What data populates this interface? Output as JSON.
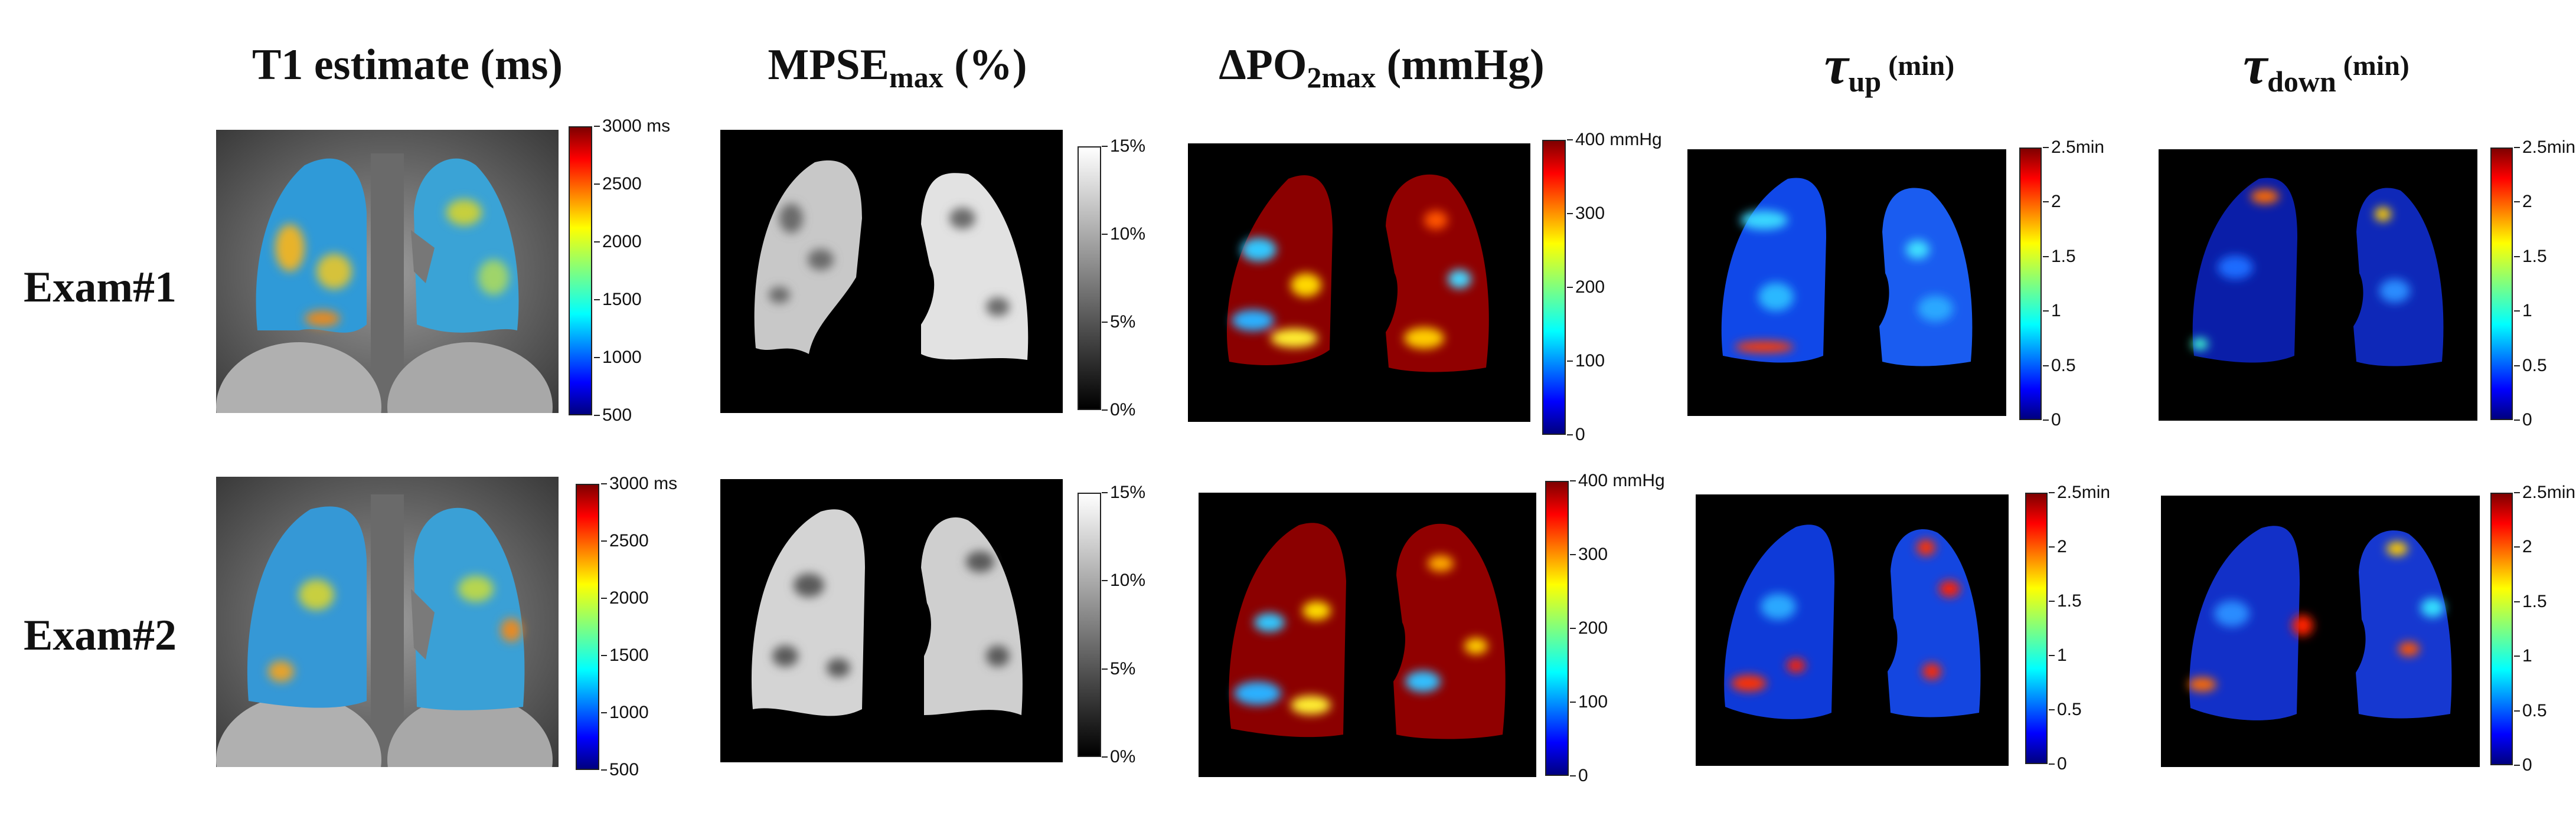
{
  "columns": {
    "t1": {
      "label": "T1 estimate (ms)"
    },
    "mpse": {
      "base": "MPSE",
      "sub": "max",
      "suffix": " (%)"
    },
    "dpo2": {
      "base": "ΔPO",
      "sub": "2max",
      "suffix": " (mmHg)"
    },
    "tau_up": {
      "symbol": "τ",
      "sub": "up",
      "suffix": " (min)"
    },
    "tau_down": {
      "symbol": "τ",
      "sub": "down",
      "suffix": " (min)"
    }
  },
  "rows": {
    "exam1": "Exam#1",
    "exam2": "Exam#2"
  },
  "colorbars": {
    "t1": [
      "3000 ms",
      "2500",
      "2000",
      "1500",
      "1000",
      "500"
    ],
    "mpse": [
      "15%",
      "10%",
      "5%",
      "0%"
    ],
    "dpo2": [
      "400 mmHg",
      "300",
      "200",
      "100",
      "0"
    ],
    "tau": [
      "2.5min",
      "2",
      "1.5",
      "1",
      "0.5",
      "0"
    ]
  },
  "colors": {
    "jet": [
      "#00007f",
      "#0000ff",
      "#007fff",
      "#00ffff",
      "#7fff7f",
      "#ffff00",
      "#ff7f00",
      "#ff0000",
      "#7f0000"
    ],
    "background": "#000000"
  }
}
